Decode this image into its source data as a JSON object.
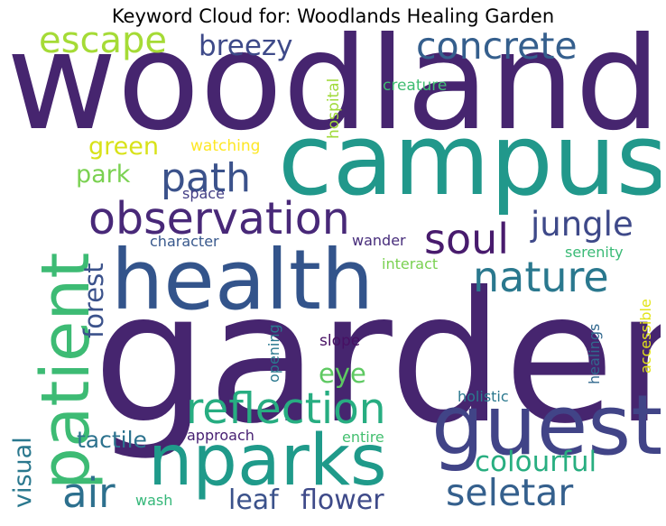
{
  "title": "Keyword Cloud for: Woodlands Healing Garden",
  "words": [
    {
      "text": "woodland",
      "color": "#46256f"
    },
    {
      "text": "garden",
      "color": "#46256f"
    },
    {
      "text": "campus",
      "color": "#21988b"
    },
    {
      "text": "health",
      "color": "#33548b"
    },
    {
      "text": "patient",
      "color": "#3dbb74"
    },
    {
      "text": "guest",
      "color": "#414487"
    },
    {
      "text": "nparks",
      "color": "#1f9a8a"
    },
    {
      "text": "observation",
      "color": "#482878"
    },
    {
      "text": "reflection",
      "color": "#27ad81"
    },
    {
      "text": "nature",
      "color": "#2a788e"
    },
    {
      "text": "soul",
      "color": "#481b6d"
    },
    {
      "text": "path",
      "color": "#3b528b"
    },
    {
      "text": "concrete",
      "color": "#355f8d"
    },
    {
      "text": "escape",
      "color": "#a5db36"
    },
    {
      "text": "breezy",
      "color": "#3e4a89"
    },
    {
      "text": "jungle",
      "color": "#3e4989"
    },
    {
      "text": "seletar",
      "color": "#35608d"
    },
    {
      "text": "air",
      "color": "#2d708e"
    },
    {
      "text": "colourful",
      "color": "#28ae80"
    },
    {
      "text": "leaf",
      "color": "#3b528b"
    },
    {
      "text": "flower",
      "color": "#3e4a89"
    },
    {
      "text": "forest",
      "color": "#3b528b"
    },
    {
      "text": "tactile",
      "color": "#2c728e"
    },
    {
      "text": "eye",
      "color": "#5ec962"
    },
    {
      "text": "green",
      "color": "#d8e219"
    },
    {
      "text": "park",
      "color": "#7ad151"
    },
    {
      "text": "visual",
      "color": "#2a788e"
    },
    {
      "text": "hospital",
      "color": "#a0da39"
    },
    {
      "text": "creature",
      "color": "#40bd72"
    },
    {
      "text": "watching",
      "color": "#fde725"
    },
    {
      "text": "space",
      "color": "#433e85"
    },
    {
      "text": "character",
      "color": "#38588c"
    },
    {
      "text": "wander",
      "color": "#472d7b"
    },
    {
      "text": "interact",
      "color": "#7ad151"
    },
    {
      "text": "serenity",
      "color": "#3aba76"
    },
    {
      "text": "accessible",
      "color": "#e2e418"
    },
    {
      "text": "healings",
      "color": "#31688e"
    },
    {
      "text": "slope",
      "color": "#471063"
    },
    {
      "text": "opening",
      "color": "#2a788e"
    },
    {
      "text": "holistic",
      "color": "#2a788e"
    },
    {
      "text": "approach",
      "color": "#482173"
    },
    {
      "text": "entire",
      "color": "#44bf70"
    },
    {
      "text": "wash",
      "color": "#35b779"
    }
  ]
}
